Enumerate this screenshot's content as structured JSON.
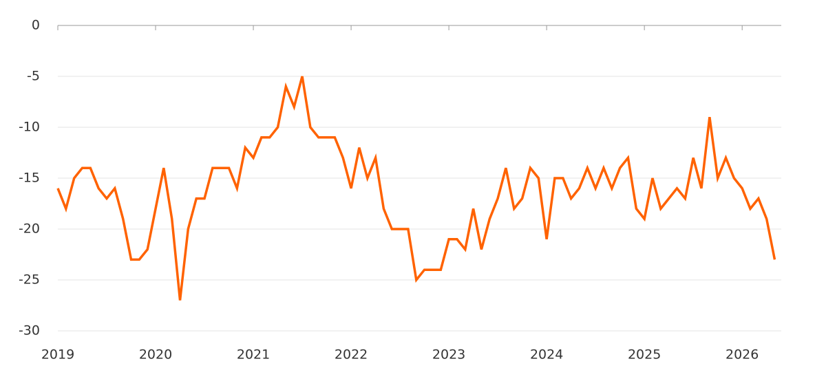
{
  "chart_data": {
    "type": "line",
    "x": [
      2019,
      2019.083,
      2019.167,
      2019.25,
      2019.333,
      2019.417,
      2019.5,
      2019.583,
      2019.667,
      2019.75,
      2019.833,
      2019.917,
      2020,
      2020.083,
      2020.167,
      2020.25,
      2020.333,
      2020.417,
      2020.5,
      2020.583,
      2020.667,
      2020.75,
      2020.833,
      2020.917,
      2021,
      2021.083,
      2021.167,
      2021.25,
      2021.333,
      2021.417,
      2021.5,
      2021.583,
      2021.667,
      2021.75,
      2021.833,
      2021.917,
      2022,
      2022.083,
      2022.167,
      2022.25,
      2022.333,
      2022.417,
      2022.5,
      2022.583,
      2022.667,
      2022.75,
      2022.833,
      2022.917,
      2023,
      2023.083,
      2023.167,
      2023.25,
      2023.333,
      2023.417,
      2023.5,
      2023.583,
      2023.667,
      2023.75,
      2023.833,
      2023.917,
      2024,
      2024.083,
      2024.167,
      2024.25,
      2024.333,
      2024.417,
      2024.5,
      2024.583,
      2024.667,
      2024.75,
      2024.833,
      2024.917,
      2025,
      2025.083,
      2025.167,
      2025.25,
      2025.333,
      2025.417,
      2025.5,
      2025.583,
      2025.667,
      2025.75,
      2025.833,
      2025.917,
      2026,
      2026.083,
      2026.167,
      2026.25,
      2026.333
    ],
    "values": [
      -16,
      -18,
      -15,
      -14,
      -14,
      -16,
      -17,
      -16,
      -19,
      -23,
      -23,
      -22,
      -18,
      -14,
      -19,
      -27,
      -20,
      -17,
      -17,
      -14,
      -14,
      -14,
      -16,
      -12,
      -13,
      -11,
      -11,
      -10,
      -6,
      -8,
      -5,
      -10,
      -11,
      -11,
      -11,
      -13,
      -16,
      -12,
      -15,
      -13,
      -18,
      -20,
      -20,
      -20,
      -25,
      -24,
      -24,
      -24,
      -21,
      -21,
      -22,
      -18,
      -22,
      -19,
      -17,
      -14,
      -18,
      -17,
      -14,
      -15,
      -21,
      -15,
      -15,
      -17,
      -16,
      -14,
      -16,
      -14,
      -16,
      -14,
      -13,
      -18,
      -19,
      -15,
      -18,
      -17,
      -16,
      -17,
      -13,
      -16,
      -9,
      -15,
      -13,
      -15,
      -16,
      -18,
      -17,
      -19,
      -23
    ],
    "color": "#ff6200",
    "xlim": [
      2019,
      2026.4
    ],
    "xticks": [
      2019,
      2020,
      2021,
      2022,
      2023,
      2024,
      2025,
      2026
    ],
    "ylim": [
      -30,
      0
    ],
    "yticks": [
      0,
      -5,
      -10,
      -15,
      -20,
      -25,
      -30
    ],
    "grid": true
  }
}
